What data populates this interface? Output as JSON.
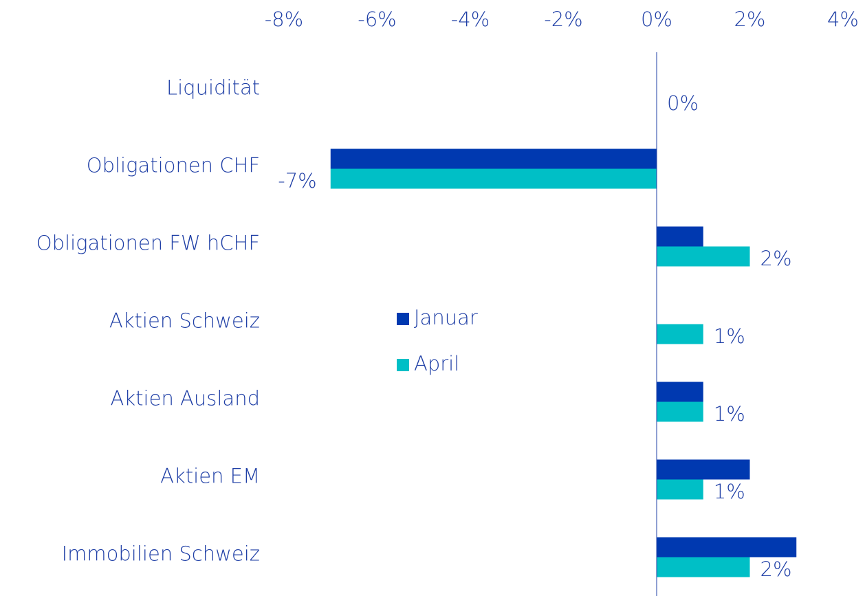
{
  "chart_data": {
    "type": "bar",
    "orientation": "horizontal",
    "categories": [
      "Liquidität",
      "Obligationen CHF",
      "Obligationen FW hCHF",
      "Aktien Schweiz",
      "Aktien Ausland",
      "Aktien EM",
      "Immobilien Schweiz"
    ],
    "series": [
      {
        "name": "Januar",
        "color": "#0039b0",
        "values": [
          0,
          -7,
          1,
          0,
          1,
          2,
          3
        ]
      },
      {
        "name": "April",
        "color": "#00bfc6",
        "values": [
          0,
          -7,
          2,
          1,
          1,
          1,
          2
        ],
        "value_labels": [
          "0%",
          "-7%",
          "2%",
          "1%",
          "1%",
          "1%",
          "2%"
        ]
      }
    ],
    "xlim": [
      -8,
      4
    ],
    "xticks": [
      {
        "value": -8,
        "label": "-8%"
      },
      {
        "value": -6,
        "label": "-6%"
      },
      {
        "value": -4,
        "label": "-4%"
      },
      {
        "value": -2,
        "label": "-2%"
      },
      {
        "value": 0,
        "label": "0%"
      },
      {
        "value": 2,
        "label": "2%"
      },
      {
        "value": 4,
        "label": "4%"
      }
    ],
    "xaxis_position": "top",
    "grid": false,
    "legend": "center"
  }
}
